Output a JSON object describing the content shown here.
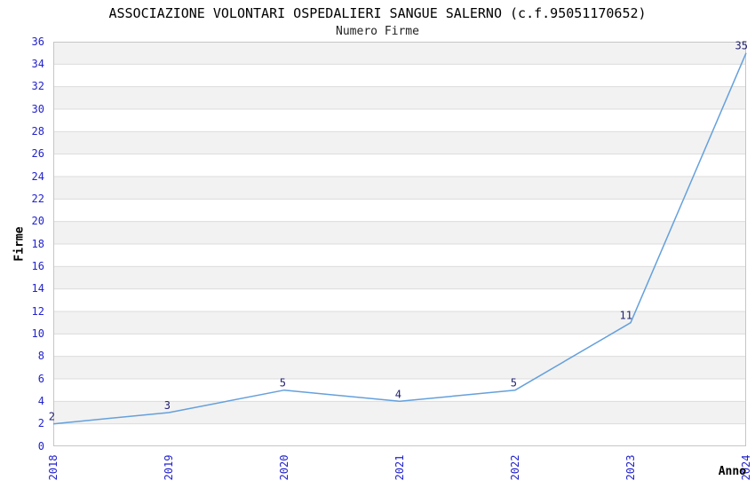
{
  "chart_data": {
    "type": "line",
    "title": "ASSOCIAZIONE VOLONTARI OSPEDALIERI SANGUE SALERNO (c.f.95051170652)",
    "subtitle": "Numero Firme",
    "xlabel": "Anno",
    "ylabel": "Firme",
    "x": [
      "2018",
      "2019",
      "2020",
      "2021",
      "2022",
      "2023",
      "2024"
    ],
    "series": [
      {
        "name": "Numero Firme",
        "values": [
          2,
          3,
          5,
          4,
          5,
          11,
          35
        ]
      }
    ],
    "data_labels": [
      "2",
      "3",
      "5",
      "4",
      "5",
      "11",
      "35"
    ],
    "ylim": [
      0,
      36
    ],
    "ytick_step": 2,
    "yticks": [
      0,
      2,
      4,
      6,
      8,
      10,
      12,
      14,
      16,
      18,
      20,
      22,
      24,
      26,
      28,
      30,
      32,
      34,
      36
    ],
    "grid": true,
    "alternating_bands": true,
    "legend_position": "none",
    "colors": {
      "line": "#64a0dc",
      "tick_label": "#2222cc",
      "data_label": "#222270",
      "band": "#f2f2f2",
      "band_alt": "#ffffff",
      "gridline": "#dcdcdc",
      "plot_border": "#c6c6c6",
      "title": "#000000"
    }
  }
}
